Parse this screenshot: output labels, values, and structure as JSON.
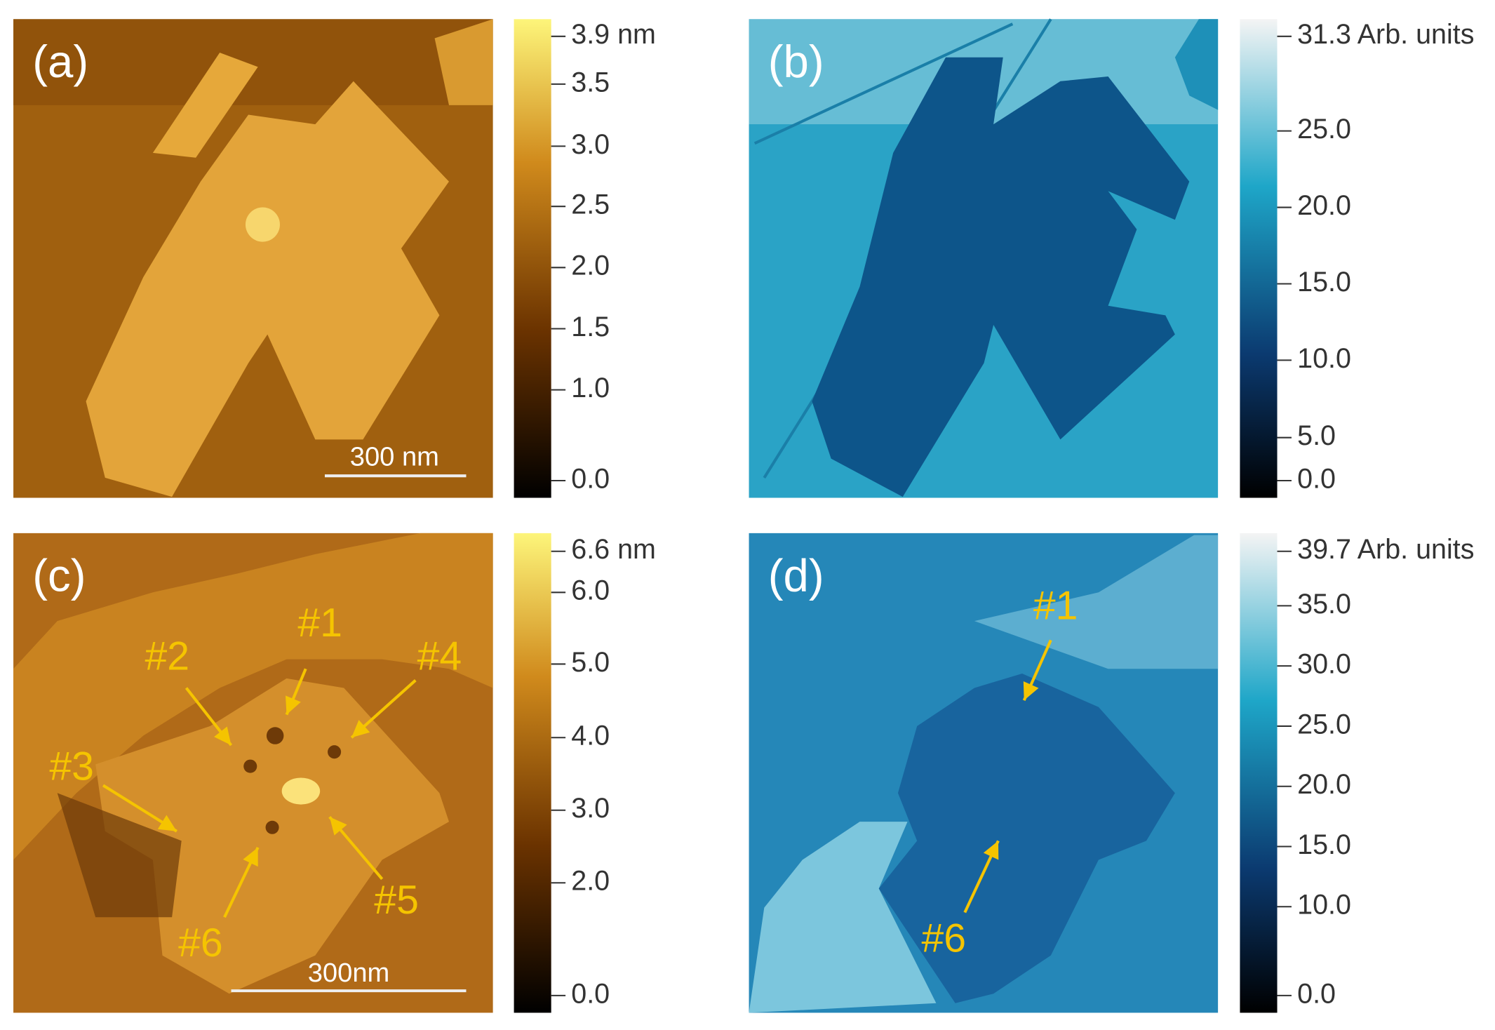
{
  "panels": [
    {
      "label": "(a)",
      "colorbar": {
        "ticks": [
          "3.9 nm",
          "3.5",
          "3.0",
          "2.5",
          "2.0",
          "1.5",
          "1.0",
          "0.0"
        ]
      },
      "scale_bar": "300 nm"
    },
    {
      "label": "(b)",
      "colorbar": {
        "ticks": [
          "31.3 Arb. units",
          "25.0",
          "20.0",
          "15.0",
          "10.0",
          "5.0",
          "0.0"
        ]
      }
    },
    {
      "label": "(c)",
      "colorbar": {
        "ticks": [
          "6.6 nm",
          "6.0",
          "5.0",
          "4.0",
          "3.0",
          "2.0",
          "0.0"
        ]
      },
      "scale_bar": "300nm",
      "annotations": [
        "#1",
        "#2",
        "#4",
        "#3",
        "#5",
        "#6"
      ]
    },
    {
      "label": "(d)",
      "colorbar": {
        "ticks": [
          "39.7 Arb. units",
          "35.0",
          "30.0",
          "25.0",
          "20.0",
          "15.0",
          "10.0",
          "0.0"
        ]
      },
      "annotations": [
        "#1",
        "#6"
      ]
    }
  ]
}
